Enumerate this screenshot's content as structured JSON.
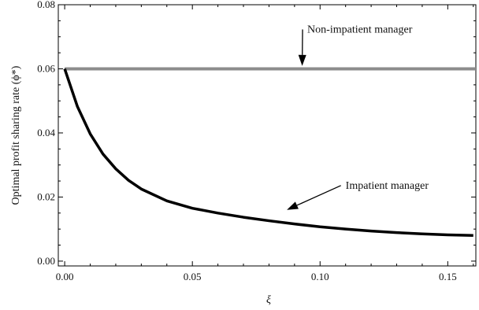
{
  "chart_data": {
    "type": "line",
    "title": "",
    "xlabel": "ξ",
    "ylabel": "Optimal profit sharing rate (ϕ*)",
    "xlim": [
      -0.0025,
      0.161
    ],
    "ylim": [
      -0.0015,
      0.08
    ],
    "xticks": [
      0.0,
      0.05,
      0.1,
      0.15
    ],
    "xtick_labels": [
      "0.00",
      "0.05",
      "0.10",
      "0.15"
    ],
    "yticks": [
      0.0,
      0.02,
      0.04,
      0.06,
      0.08
    ],
    "ytick_labels": [
      "0.00",
      "0.02",
      "0.04",
      "0.06",
      "0.08"
    ],
    "grid": false,
    "series": [
      {
        "name": "Non-impatient manager",
        "color": "#8c8c8c",
        "x": [
          0.0,
          0.161
        ],
        "y": [
          0.06,
          0.06
        ]
      },
      {
        "name": "Impatient manager",
        "color": "#000000",
        "x": [
          0.0,
          0.005,
          0.01,
          0.015,
          0.02,
          0.025,
          0.03,
          0.04,
          0.05,
          0.06,
          0.07,
          0.08,
          0.09,
          0.1,
          0.11,
          0.12,
          0.13,
          0.14,
          0.15,
          0.16
        ],
        "y": [
          0.06,
          0.0482,
          0.0397,
          0.0334,
          0.0288,
          0.0252,
          0.0225,
          0.0188,
          0.0165,
          0.015,
          0.0137,
          0.0126,
          0.0116,
          0.0107,
          0.01,
          0.0094,
          0.0089,
          0.0085,
          0.0082,
          0.008
        ]
      }
    ],
    "annotations": [
      {
        "text": "Non-impatient manager",
        "x": 0.095,
        "y": 0.0713,
        "arrow_to": [
          0.093,
          0.0609
        ]
      },
      {
        "text": "Impatient manager",
        "x": 0.11,
        "y": 0.0226,
        "arrow_to": [
          0.087,
          0.016
        ]
      }
    ]
  }
}
